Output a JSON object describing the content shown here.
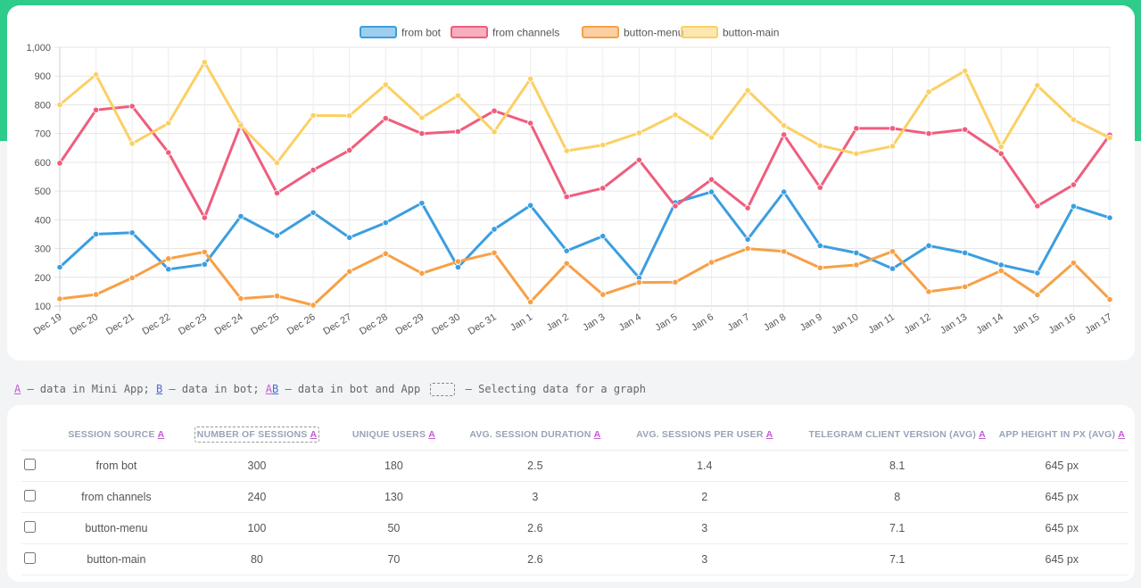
{
  "colors": {
    "from_bot": "#3b9ee0",
    "from_channels": "#ef5d7e",
    "button_menu": "#f7a046",
    "button_main": "#fbd064",
    "accent_band": "#2ecb8a"
  },
  "chart_data": {
    "type": "line",
    "legend_position": "top-center",
    "grid": true,
    "ylim": [
      100,
      1000
    ],
    "y_ticks": [
      "100",
      "200",
      "300",
      "400",
      "500",
      "600",
      "700",
      "800",
      "900",
      "1,000"
    ],
    "categories": [
      "Dec 19",
      "Dec 20",
      "Dec 21",
      "Dec 22",
      "Dec 23",
      "Dec 24",
      "Dec 25",
      "Dec 26",
      "Dec 27",
      "Dec 28",
      "Dec 29",
      "Dec 30",
      "Dec 31",
      "Jan 1",
      "Jan 2",
      "Jan 3",
      "Jan 4",
      "Jan 5",
      "Jan 6",
      "Jan 7",
      "Jan 8",
      "Jan 9",
      "Jan 10",
      "Jan 11",
      "Jan 12",
      "Jan 13",
      "Jan 14",
      "Jan 15",
      "Jan 16",
      "Jan 17"
    ],
    "series": [
      {
        "name": "from bot",
        "color": "#3b9ee0",
        "values": [
          235,
          350,
          355,
          228,
          245,
          412,
          345,
          425,
          338,
          390,
          458,
          235,
          367,
          450,
          292,
          343,
          198,
          460,
          497,
          332,
          497,
          310,
          285,
          230,
          310,
          285,
          243,
          215,
          447,
          407
        ]
      },
      {
        "name": "from channels",
        "color": "#ef5d7e",
        "values": [
          597,
          782,
          795,
          634,
          407,
          732,
          493,
          573,
          642,
          753,
          700,
          707,
          779,
          736,
          480,
          510,
          608,
          448,
          540,
          441,
          696,
          512,
          718,
          718,
          700,
          714,
          630,
          448,
          522,
          695
        ]
      },
      {
        "name": "button-menu",
        "color": "#f7a046",
        "values": [
          125,
          140,
          198,
          265,
          288,
          126,
          135,
          103,
          220,
          282,
          214,
          255,
          285,
          114,
          248,
          140,
          182,
          183,
          252,
          300,
          290,
          233,
          243,
          290,
          150,
          167,
          223,
          139,
          250,
          123
        ]
      },
      {
        "name": "button-main",
        "color": "#fbd064",
        "values": [
          800,
          905,
          665,
          736,
          948,
          728,
          598,
          763,
          762,
          870,
          755,
          832,
          706,
          890,
          640,
          660,
          702,
          765,
          686,
          850,
          728,
          658,
          630,
          656,
          845,
          918,
          654,
          867,
          748,
          685
        ]
      }
    ]
  },
  "key_line": {
    "a_mark": "A",
    "a_desc": " – data in Mini App; ",
    "b_mark": "B",
    "b_desc": " – data in bot; ",
    "ab_a": "A",
    "ab_b": "B",
    "ab_desc": " – data in bot and App ",
    "select_desc": " – Selecting data for a graph"
  },
  "table": {
    "columns": [
      {
        "label": "Session source",
        "mark": "A"
      },
      {
        "label": "Number of sessions",
        "mark": "A"
      },
      {
        "label": "Unique users",
        "mark": "A"
      },
      {
        "label": "Avg. session duration",
        "mark": "A"
      },
      {
        "label": "Avg. sessions per user",
        "mark": "A"
      },
      {
        "label": "Telegram client version (avg)",
        "mark": "A"
      },
      {
        "label": "App height in px (avg)",
        "mark": "A"
      }
    ],
    "rows": [
      [
        "from bot",
        "300",
        "180",
        "2.5",
        "1.4",
        "8.1",
        "645 px"
      ],
      [
        "from channels",
        "240",
        "130",
        "3",
        "2",
        "8",
        "645 px"
      ],
      [
        "button-menu",
        "100",
        "50",
        "2.6",
        "3",
        "7.1",
        "645 px"
      ],
      [
        "button-main",
        "80",
        "70",
        "2.6",
        "3",
        "7.1",
        "645 px"
      ]
    ]
  }
}
